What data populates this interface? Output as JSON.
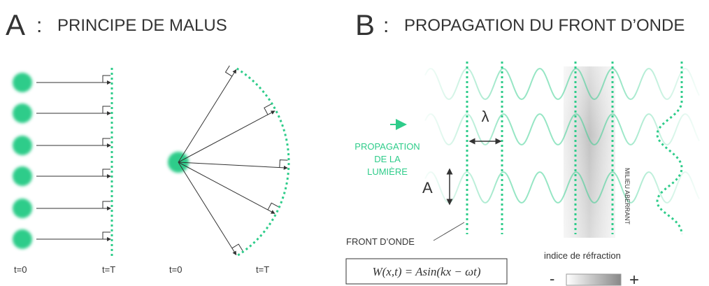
{
  "panel_a": {
    "letter": "A",
    "separator": ":",
    "title": "PRINCIPE DE MALUS",
    "labels": {
      "plane_start": "t=0",
      "plane_end": "t=T",
      "sphere_start": "t=0",
      "sphere_end": "t=T"
    }
  },
  "panel_b": {
    "letter": "B",
    "separator": ":",
    "title": "PROPAGATION DU FRONT D’ONDE",
    "propagation_label": [
      "PROPAGATION",
      "DE LA",
      "LUMIÈRE"
    ],
    "wavelength_symbol": "λ",
    "amplitude_symbol": "A",
    "medium_label": "MILIEU ABERRANT",
    "wavefront_label": "FRONT D’ONDE",
    "formula": "W(x,t) = Asin(kx − ωt)",
    "index_legend": {
      "title": "indice de réfraction",
      "low": "-",
      "high": "+"
    }
  }
}
